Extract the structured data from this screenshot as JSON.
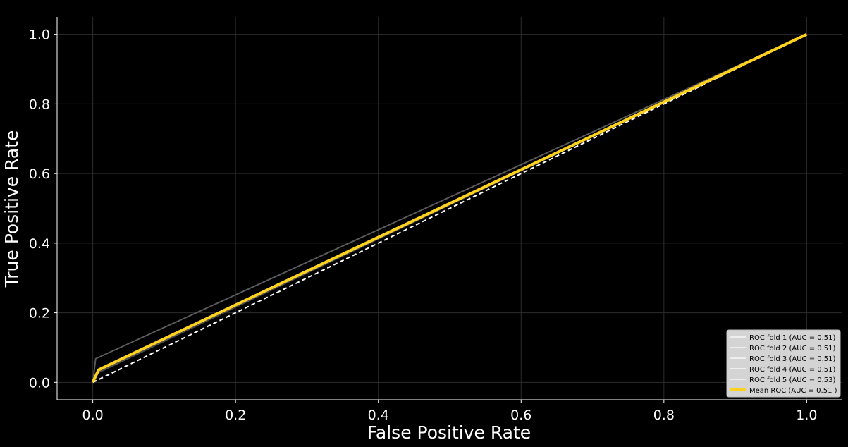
{
  "chart_data": {
    "type": "line",
    "title": "",
    "xlabel": "False Positive Rate",
    "ylabel": "True Positive Rate",
    "xlim": [
      -0.05,
      1.05
    ],
    "ylim": [
      -0.05,
      1.05
    ],
    "xticks": [
      "0.0",
      "0.2",
      "0.4",
      "0.6",
      "0.8",
      "1.0"
    ],
    "yticks": [
      "0.0",
      "0.2",
      "0.4",
      "0.6",
      "0.8",
      "1.0"
    ],
    "grid": true,
    "legend_position": "lower-right",
    "series": [
      {
        "name": "ROC fold 1 (AUC = 0.51)",
        "color": "#3a3a3a",
        "x": [
          0.0,
          0.008,
          1.0
        ],
        "y": [
          0.0,
          0.032,
          1.0
        ]
      },
      {
        "name": "ROC fold 2 (AUC = 0.51)",
        "color": "#4a4a4a",
        "x": [
          0.0,
          0.008,
          1.0
        ],
        "y": [
          0.0,
          0.028,
          1.0
        ]
      },
      {
        "name": "ROC fold 3 (AUC = 0.51)",
        "color": "#404040",
        "x": [
          0.0,
          0.008,
          1.0
        ],
        "y": [
          0.0,
          0.034,
          1.0
        ]
      },
      {
        "name": "ROC fold 4 (AUC = 0.51)",
        "color": "#505050",
        "x": [
          0.0,
          0.008,
          1.0
        ],
        "y": [
          0.0,
          0.03,
          1.0
        ]
      },
      {
        "name": "ROC fold 5 (AUC = 0.53)",
        "color": "#5a5a5a",
        "x": [
          0.0,
          0.004,
          1.0
        ],
        "y": [
          0.0,
          0.068,
          1.0
        ]
      },
      {
        "name": "Mean ROC (AUC = 0.51 )",
        "color": "#ffd21f",
        "x": [
          0.0,
          0.008,
          1.0
        ],
        "y": [
          0.0,
          0.036,
          1.0
        ]
      }
    ],
    "reference_line": {
      "x": [
        0.0,
        1.0
      ],
      "y": [
        0.0,
        1.0
      ],
      "color": "#ffffff",
      "style": "dashed"
    }
  }
}
